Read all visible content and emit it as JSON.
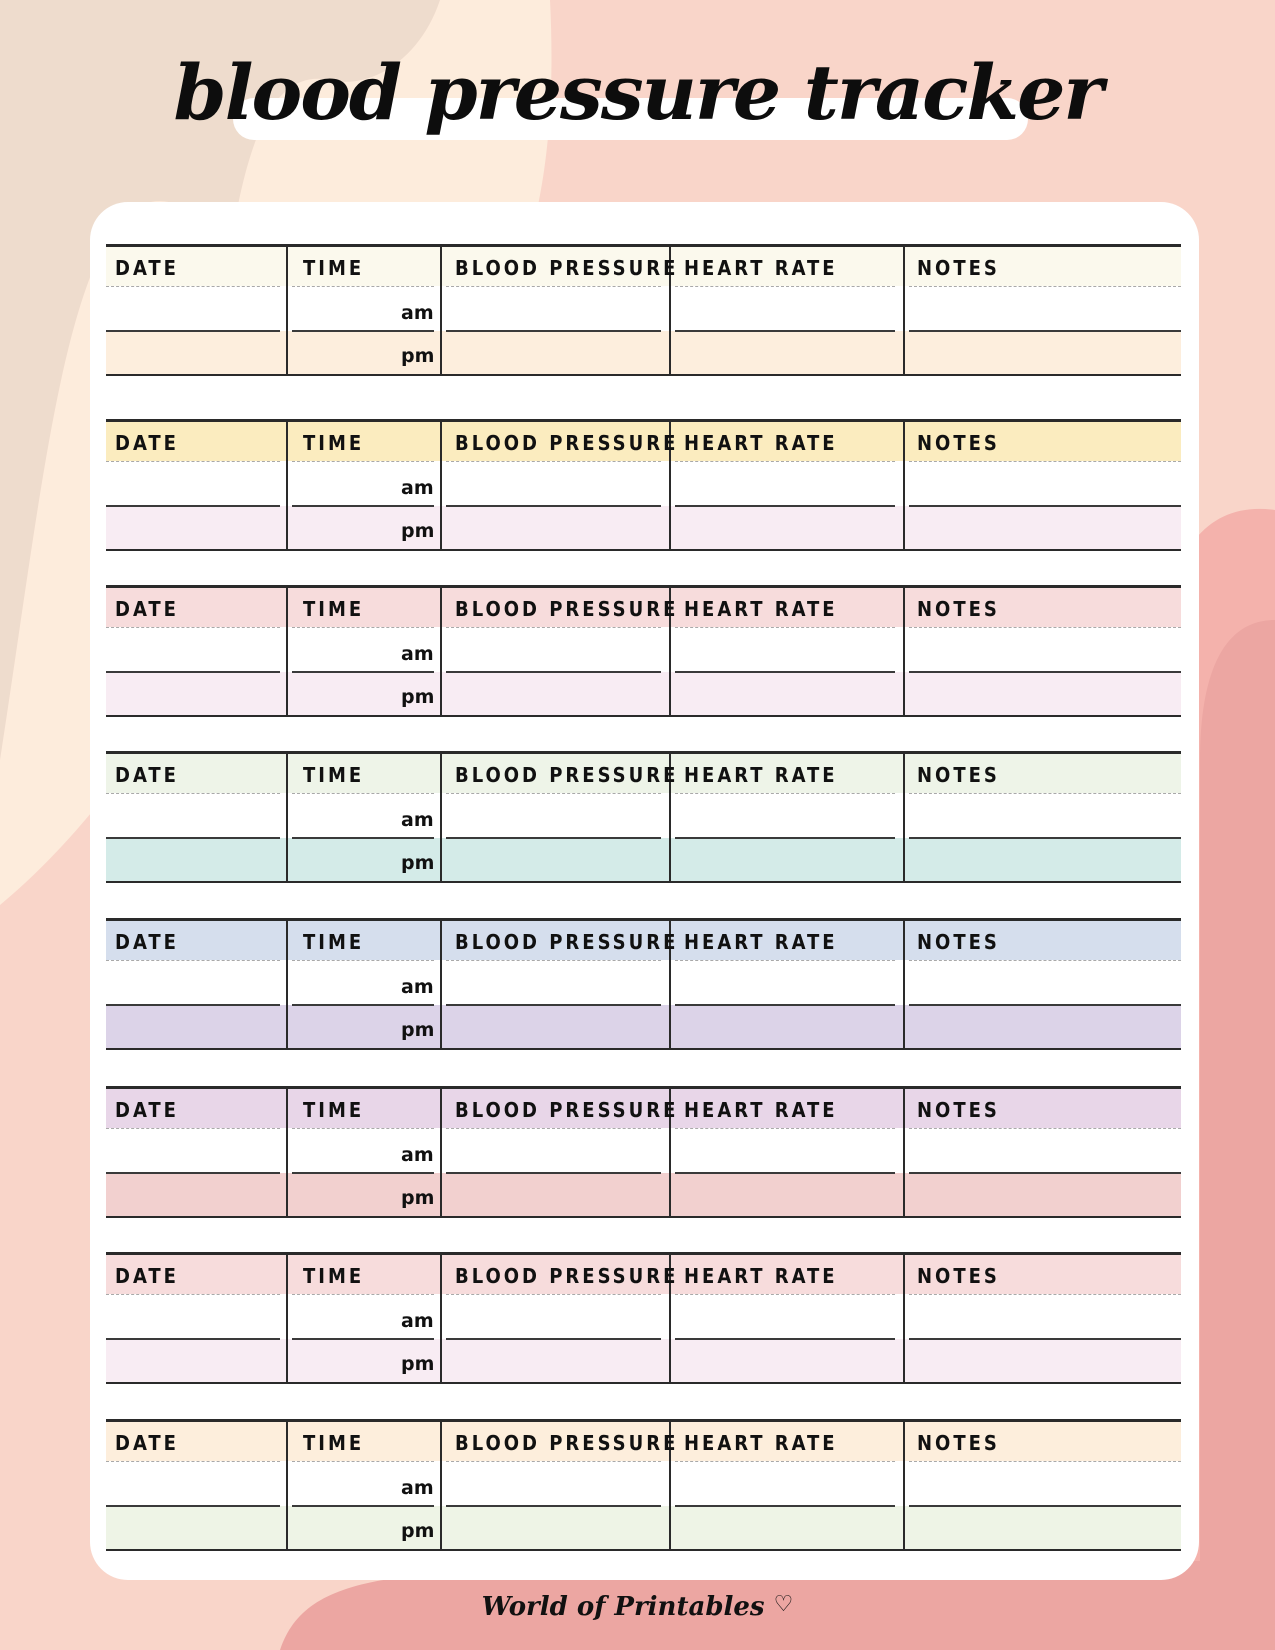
{
  "title": "blood pressure tracker",
  "columns": [
    "DATE",
    "TIME",
    "BLOOD PRESSURE",
    "HEART RATE",
    "NOTES"
  ],
  "am_label": "am",
  "pm_label": "pm",
  "footer": "World of Printables",
  "footer_icon": "heart-icon",
  "colors": {
    "background": "#f9d5c9",
    "card": "#ffffff",
    "blob_beige": "#eedccd",
    "blob_cream": "#fdecdc",
    "blob_rose": "#f4b2ac",
    "blob_deep_rose": "#eca6a2"
  },
  "blocks": [
    {
      "header_color": "#fbf9ed",
      "pm_color": "#fdeedd"
    },
    {
      "header_color": "#fbecbf",
      "pm_color": "#f8ecf3"
    },
    {
      "header_color": "#f7dcdc",
      "pm_color": "#f8ecf3"
    },
    {
      "header_color": "#eef4e8",
      "pm_color": "#d4ebe8"
    },
    {
      "header_color": "#d5deed",
      "pm_color": "#dcd3e8"
    },
    {
      "header_color": "#e8d6e8",
      "pm_color": "#f2d0cf"
    },
    {
      "header_color": "#f7dcdc",
      "pm_color": "#f8ecf3"
    },
    {
      "header_color": "#fdeedc",
      "pm_color": "#eef4e6"
    }
  ]
}
